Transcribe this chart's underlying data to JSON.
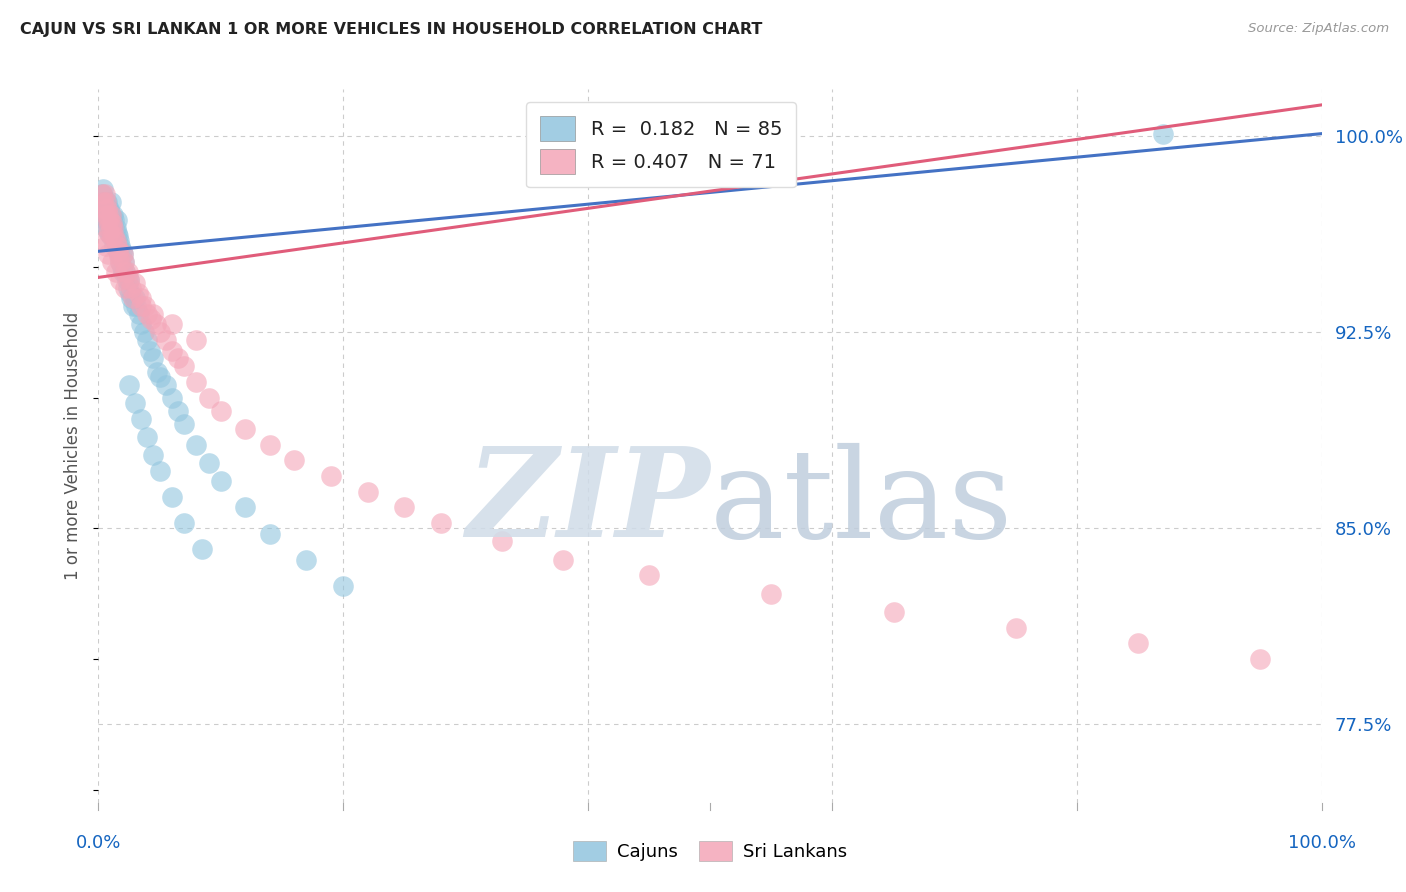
{
  "title": "CAJUN VS SRI LANKAN 1 OR MORE VEHICLES IN HOUSEHOLD CORRELATION CHART",
  "source": "Source: ZipAtlas.com",
  "ylabel": "1 or more Vehicles in Household",
  "ytick_values": [
    0.775,
    0.85,
    0.925,
    1.0
  ],
  "ytick_labels": [
    "77.5%",
    "85.0%",
    "92.5%",
    "100.0%"
  ],
  "legend_blue_r": "0.182",
  "legend_blue_n": "85",
  "legend_pink_r": "0.407",
  "legend_pink_n": "71",
  "blue_scatter_color": "#92c5de",
  "pink_scatter_color": "#f4a6b8",
  "blue_line_color": "#4472c4",
  "pink_line_color": "#e05c7a",
  "watermark_zip_color": "#d0dce8",
  "watermark_atlas_color": "#c0cedd",
  "background_color": "#ffffff",
  "grid_color": "#cccccc",
  "title_color": "#222222",
  "axis_label_color": "#1565c0",
  "xmin": 0.0,
  "xmax": 1.0,
  "ymin": 0.745,
  "ymax": 1.018,
  "blue_line_x0": 0.0,
  "blue_line_y0": 0.956,
  "blue_line_x1": 1.0,
  "blue_line_y1": 1.001,
  "pink_line_x0": 0.0,
  "pink_line_y0": 0.946,
  "pink_line_x1": 1.0,
  "pink_line_y1": 1.012,
  "cajun_x": [
    0.002,
    0.003,
    0.003,
    0.004,
    0.004,
    0.005,
    0.005,
    0.005,
    0.006,
    0.006,
    0.006,
    0.007,
    0.007,
    0.007,
    0.008,
    0.008,
    0.008,
    0.009,
    0.009,
    0.009,
    0.01,
    0.01,
    0.01,
    0.01,
    0.011,
    0.011,
    0.012,
    0.012,
    0.013,
    0.013,
    0.013,
    0.014,
    0.014,
    0.015,
    0.015,
    0.015,
    0.016,
    0.016,
    0.017,
    0.017,
    0.018,
    0.018,
    0.019,
    0.019,
    0.02,
    0.02,
    0.021,
    0.022,
    0.023,
    0.024,
    0.025,
    0.026,
    0.027,
    0.028,
    0.03,
    0.031,
    0.033,
    0.035,
    0.037,
    0.04,
    0.042,
    0.045,
    0.048,
    0.05,
    0.055,
    0.06,
    0.065,
    0.07,
    0.08,
    0.09,
    0.1,
    0.12,
    0.14,
    0.17,
    0.2,
    0.025,
    0.03,
    0.035,
    0.04,
    0.045,
    0.05,
    0.06,
    0.07,
    0.085,
    0.87
  ],
  "cajun_y": [
    0.975,
    0.972,
    0.978,
    0.97,
    0.98,
    0.975,
    0.972,
    0.968,
    0.975,
    0.97,
    0.965,
    0.975,
    0.97,
    0.968,
    0.972,
    0.968,
    0.965,
    0.972,
    0.968,
    0.963,
    0.975,
    0.97,
    0.965,
    0.962,
    0.968,
    0.963,
    0.97,
    0.965,
    0.968,
    0.963,
    0.958,
    0.965,
    0.96,
    0.968,
    0.963,
    0.958,
    0.962,
    0.956,
    0.96,
    0.955,
    0.958,
    0.952,
    0.956,
    0.95,
    0.955,
    0.948,
    0.952,
    0.948,
    0.945,
    0.942,
    0.945,
    0.94,
    0.938,
    0.935,
    0.938,
    0.935,
    0.932,
    0.928,
    0.925,
    0.922,
    0.918,
    0.915,
    0.91,
    0.908,
    0.905,
    0.9,
    0.895,
    0.89,
    0.882,
    0.875,
    0.868,
    0.858,
    0.848,
    0.838,
    0.828,
    0.905,
    0.898,
    0.892,
    0.885,
    0.878,
    0.872,
    0.862,
    0.852,
    0.842,
    1.001
  ],
  "srilanka_x": [
    0.003,
    0.004,
    0.005,
    0.005,
    0.006,
    0.006,
    0.007,
    0.007,
    0.008,
    0.008,
    0.009,
    0.009,
    0.01,
    0.01,
    0.011,
    0.011,
    0.012,
    0.013,
    0.014,
    0.015,
    0.016,
    0.017,
    0.018,
    0.02,
    0.021,
    0.022,
    0.024,
    0.025,
    0.027,
    0.03,
    0.032,
    0.035,
    0.038,
    0.04,
    0.043,
    0.047,
    0.05,
    0.055,
    0.06,
    0.065,
    0.07,
    0.08,
    0.09,
    0.1,
    0.12,
    0.14,
    0.16,
    0.19,
    0.22,
    0.25,
    0.28,
    0.33,
    0.38,
    0.45,
    0.55,
    0.65,
    0.75,
    0.85,
    0.95,
    0.004,
    0.006,
    0.008,
    0.011,
    0.014,
    0.018,
    0.022,
    0.028,
    0.035,
    0.045,
    0.06,
    0.08
  ],
  "srilanka_y": [
    0.978,
    0.975,
    0.978,
    0.972,
    0.975,
    0.97,
    0.972,
    0.968,
    0.97,
    0.965,
    0.968,
    0.963,
    0.97,
    0.965,
    0.967,
    0.962,
    0.965,
    0.962,
    0.96,
    0.958,
    0.956,
    0.954,
    0.952,
    0.955,
    0.952,
    0.948,
    0.948,
    0.945,
    0.942,
    0.944,
    0.94,
    0.938,
    0.935,
    0.932,
    0.93,
    0.928,
    0.925,
    0.922,
    0.918,
    0.915,
    0.912,
    0.906,
    0.9,
    0.895,
    0.888,
    0.882,
    0.876,
    0.87,
    0.864,
    0.858,
    0.852,
    0.845,
    0.838,
    0.832,
    0.825,
    0.818,
    0.812,
    0.806,
    0.8,
    0.96,
    0.958,
    0.955,
    0.952,
    0.948,
    0.945,
    0.942,
    0.938,
    0.935,
    0.932,
    0.928,
    0.922
  ]
}
